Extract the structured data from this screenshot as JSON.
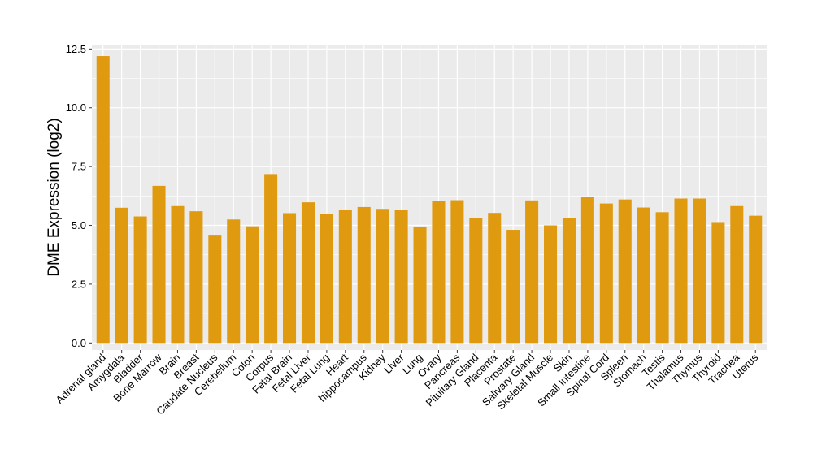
{
  "chart_data": {
    "type": "bar",
    "title": "",
    "xlabel": "",
    "ylabel": "DME Expression (log2)",
    "ylim": [
      -0.3,
      12.65
    ],
    "yticks": [
      0.0,
      2.5,
      5.0,
      7.5,
      10.0,
      12.5
    ],
    "ytick_labels": [
      "0.0",
      "2.5",
      "5.0",
      "7.5",
      "10.0",
      "12.5"
    ],
    "grid": true,
    "legend": "none",
    "bar_color": "#E09A10",
    "panel_color": "#EBEBEB",
    "grid_color": "#FFFFFF",
    "categories": [
      "Adrenal gland",
      "Amygdala",
      "Bladder",
      "Bone Marrow",
      "Brain",
      "Breast",
      "Caudate Nucleus",
      "Cerebellum",
      "Colon",
      "Corpus",
      "Fetal Brain",
      "Fetal Liver",
      "Fetal Lung",
      "Heart",
      "hippocampus",
      "Kidney",
      "Liver",
      "Lung",
      "Ovary",
      "Pancreas",
      "Pituitary Gland",
      "Placenta",
      "Prostate",
      "Salivary Gland",
      "Skeletal Muscle",
      "Skin",
      "Small Intestine",
      "Spinal Cord",
      "Spleen",
      "Stomach",
      "Testis",
      "Thalamus",
      "Thymus",
      "Thyroid",
      "Trachea",
      "Uterus"
    ],
    "values": [
      12.2,
      5.75,
      5.38,
      6.68,
      5.82,
      5.6,
      4.6,
      5.25,
      4.96,
      7.18,
      5.52,
      5.98,
      5.48,
      5.64,
      5.78,
      5.7,
      5.66,
      4.95,
      6.03,
      6.07,
      5.31,
      5.53,
      4.81,
      6.06,
      5.0,
      5.32,
      6.22,
      5.93,
      6.1,
      5.76,
      5.56,
      6.14,
      6.14,
      5.14,
      5.82,
      5.41
    ]
  }
}
